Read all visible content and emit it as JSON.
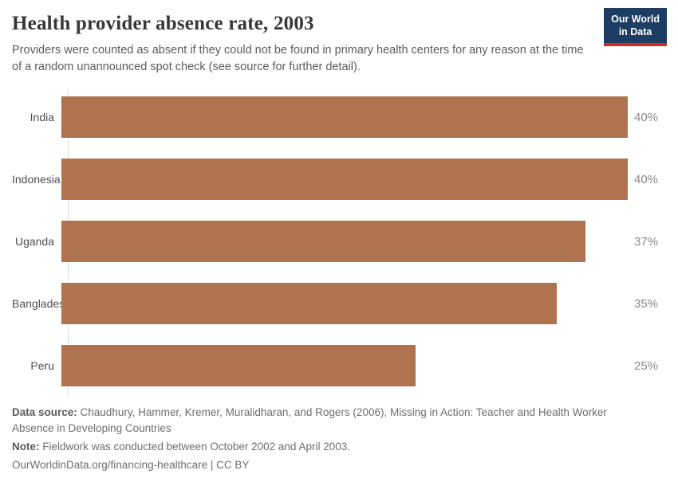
{
  "header": {
    "title": "Health provider absence rate, 2003",
    "subtitle": "Providers were counted as absent if they could not be found in primary health centers for any reason at the time of a random unannounced spot check (see source for further detail).",
    "logo": {
      "line1": "Our World",
      "line2": "in Data"
    }
  },
  "chart_data": {
    "type": "bar",
    "orientation": "horizontal",
    "title": "Health provider absence rate, 2003",
    "categories": [
      "India",
      "Indonesia",
      "Uganda",
      "Bangladesh",
      "Peru"
    ],
    "values": [
      40,
      40,
      37,
      35,
      25
    ],
    "value_labels": [
      "40%",
      "40%",
      "37%",
      "35%",
      "25%"
    ],
    "unit": "%",
    "xlim": [
      0,
      40
    ],
    "grid": false,
    "bar_color": "#b0734f",
    "value_label_position": "right-of-bar"
  },
  "footer": {
    "data_source_label": "Data source:",
    "data_source_text": " Chaudhury, Hammer, Kremer, Muralidharan, and Rogers (2006), Missing in Action: Teacher and Health Worker Absence in Developing Countries",
    "note_label": "Note:",
    "note_text": " Fieldwork was conducted between October 2002 and April 2003.",
    "license_line": "OurWorldinData.org/financing-healthcare | CC BY"
  },
  "colors": {
    "bar": "#b0734f",
    "logo_bg": "#1d3d63",
    "logo_stripe": "#d42b21",
    "title_text": "#383636",
    "axis_line": "#dedede"
  }
}
